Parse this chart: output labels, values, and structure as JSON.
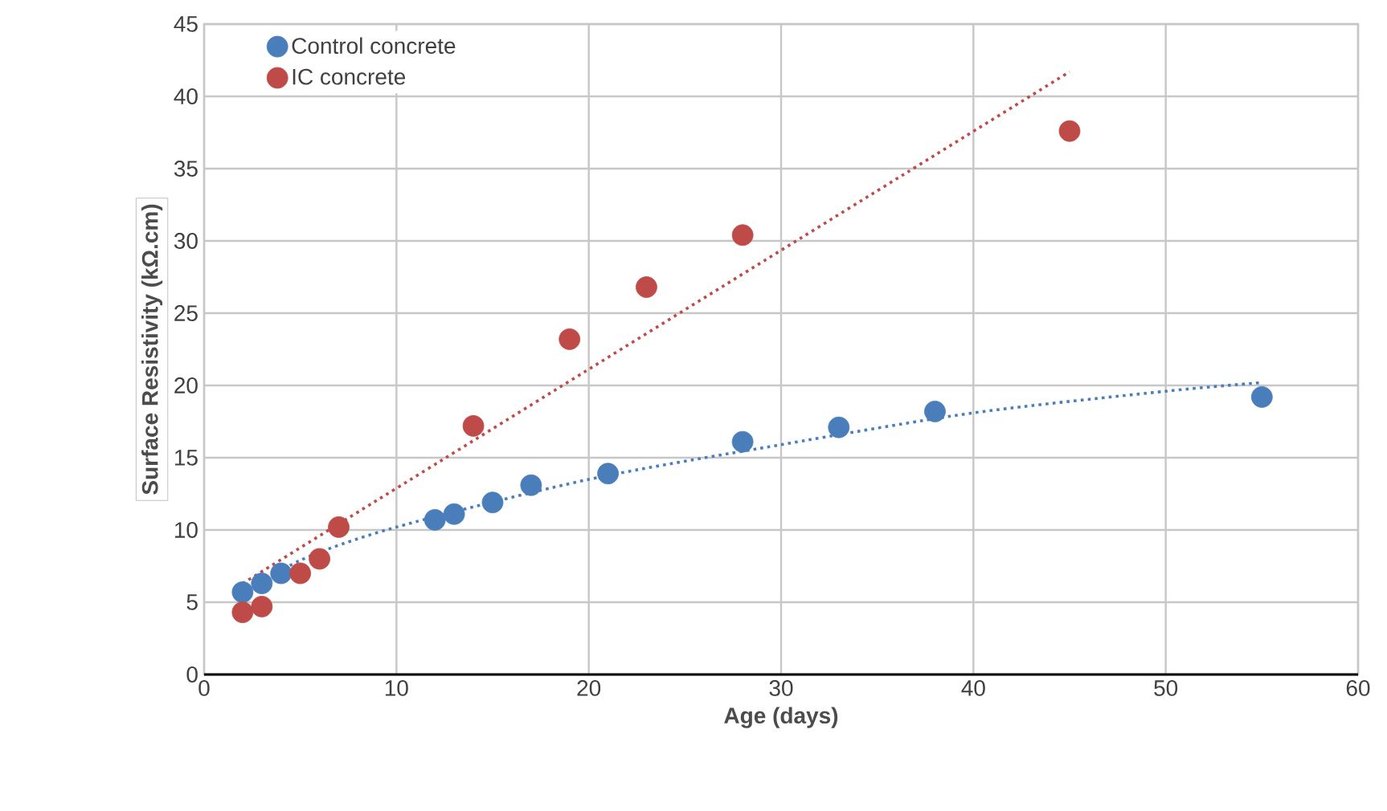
{
  "chart_data": {
    "type": "scatter",
    "xlabel": "Age (days)",
    "ylabel": "Surface Resistivity (kΩ.cm)",
    "xlim": [
      0,
      60
    ],
    "xticks": [
      0,
      10,
      20,
      30,
      40,
      50,
      60
    ],
    "ylim": [
      0,
      45
    ],
    "yticks": [
      0,
      5,
      10,
      15,
      20,
      25,
      30,
      35,
      40,
      45
    ],
    "grid": true,
    "legend": "top left",
    "marker": "circle",
    "series": [
      {
        "name": "Control concrete",
        "color": "#4a7ebb",
        "x": [
          2,
          3,
          4,
          12,
          13,
          15,
          17,
          21,
          28,
          33,
          38,
          55
        ],
        "values": [
          5.7,
          6.3,
          7.0,
          10.7,
          11.1,
          11.9,
          13.1,
          13.9,
          16.1,
          17.1,
          18.2,
          19.2
        ]
      },
      {
        "name": "IC concrete",
        "color": "#be4b48",
        "x": [
          2,
          3,
          5,
          6,
          7,
          14,
          19,
          23,
          28,
          45
        ],
        "values": [
          4.3,
          4.7,
          7.0,
          8.0,
          10.2,
          17.2,
          23.2,
          26.8,
          30.4,
          37.6
        ]
      },
      {
        "type": "line",
        "marker": "none",
        "line_style": "dotted",
        "color": "#4a7ebb",
        "x": [
          2,
          5,
          10,
          20,
          30,
          40,
          50,
          55
        ],
        "values": [
          5.4,
          7.9,
          10.2,
          13.5,
          15.9,
          18.1,
          19.6,
          20.2
        ]
      },
      {
        "type": "line",
        "marker": "none",
        "line_style": "dotted",
        "color": "#be4b48",
        "x": [
          2,
          45
        ],
        "values": [
          6.3,
          41.7
        ]
      }
    ]
  }
}
